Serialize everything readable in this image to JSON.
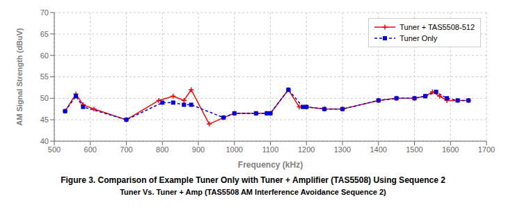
{
  "chart_data": {
    "type": "line",
    "title": "Figure 3. Comparison of Example Tuner Only with Tuner + Amplifier (TAS5508) Using Sequence 2",
    "subtitle": "Tuner Vs. Tuner + Amp (TAS5508 AM Interference Avoidance Sequence 2)",
    "x_label": "Frequency (kHz)",
    "y_label": "AM Signal Strength (dBuV)",
    "series": [
      {
        "name": "Tuner + TAS5508-512",
        "color": "#ff0000",
        "marker": "plus",
        "line_style": "solid",
        "x": [
          530,
          560,
          580,
          610,
          700,
          790,
          830,
          860,
          880,
          930,
          970,
          1000,
          1060,
          1090,
          1100,
          1150,
          1180,
          1200,
          1250,
          1300,
          1400,
          1450,
          1500,
          1530,
          1550,
          1570,
          1590,
          1620,
          1650
        ],
        "values": [
          47.0,
          51.0,
          48.5,
          47.5,
          45.0,
          49.5,
          50.5,
          49.5,
          52.0,
          44.0,
          45.5,
          46.5,
          46.5,
          46.5,
          46.5,
          52.0,
          48.0,
          48.0,
          47.5,
          47.5,
          49.5,
          50.0,
          50.0,
          50.5,
          51.5,
          50.5,
          49.5,
          49.5,
          49.5
        ]
      },
      {
        "name": "Tuner Only",
        "color": "#0000dd",
        "marker": "square",
        "line_style": "dashed",
        "x": [
          530,
          560,
          580,
          700,
          800,
          830,
          860,
          880,
          970,
          1000,
          1060,
          1090,
          1100,
          1150,
          1190,
          1200,
          1250,
          1300,
          1400,
          1450,
          1500,
          1530,
          1560,
          1590,
          1620,
          1650
        ],
        "values": [
          47.0,
          50.5,
          48.0,
          45.0,
          49.0,
          49.0,
          48.5,
          48.5,
          45.5,
          46.5,
          46.5,
          46.5,
          46.5,
          52.0,
          48.0,
          48.0,
          47.5,
          47.5,
          49.5,
          50.0,
          50.0,
          50.5,
          51.5,
          50.0,
          49.5,
          49.5
        ]
      }
    ],
    "xlim": [
      500,
      1700
    ],
    "ylim": [
      40,
      70
    ],
    "xticks": [
      500,
      600,
      700,
      800,
      900,
      1000,
      1100,
      1200,
      1300,
      1400,
      1500,
      1600,
      1700
    ],
    "yticks": [
      40,
      45,
      50,
      55,
      60,
      65,
      70
    ],
    "grid": true,
    "legend": "upper right"
  }
}
